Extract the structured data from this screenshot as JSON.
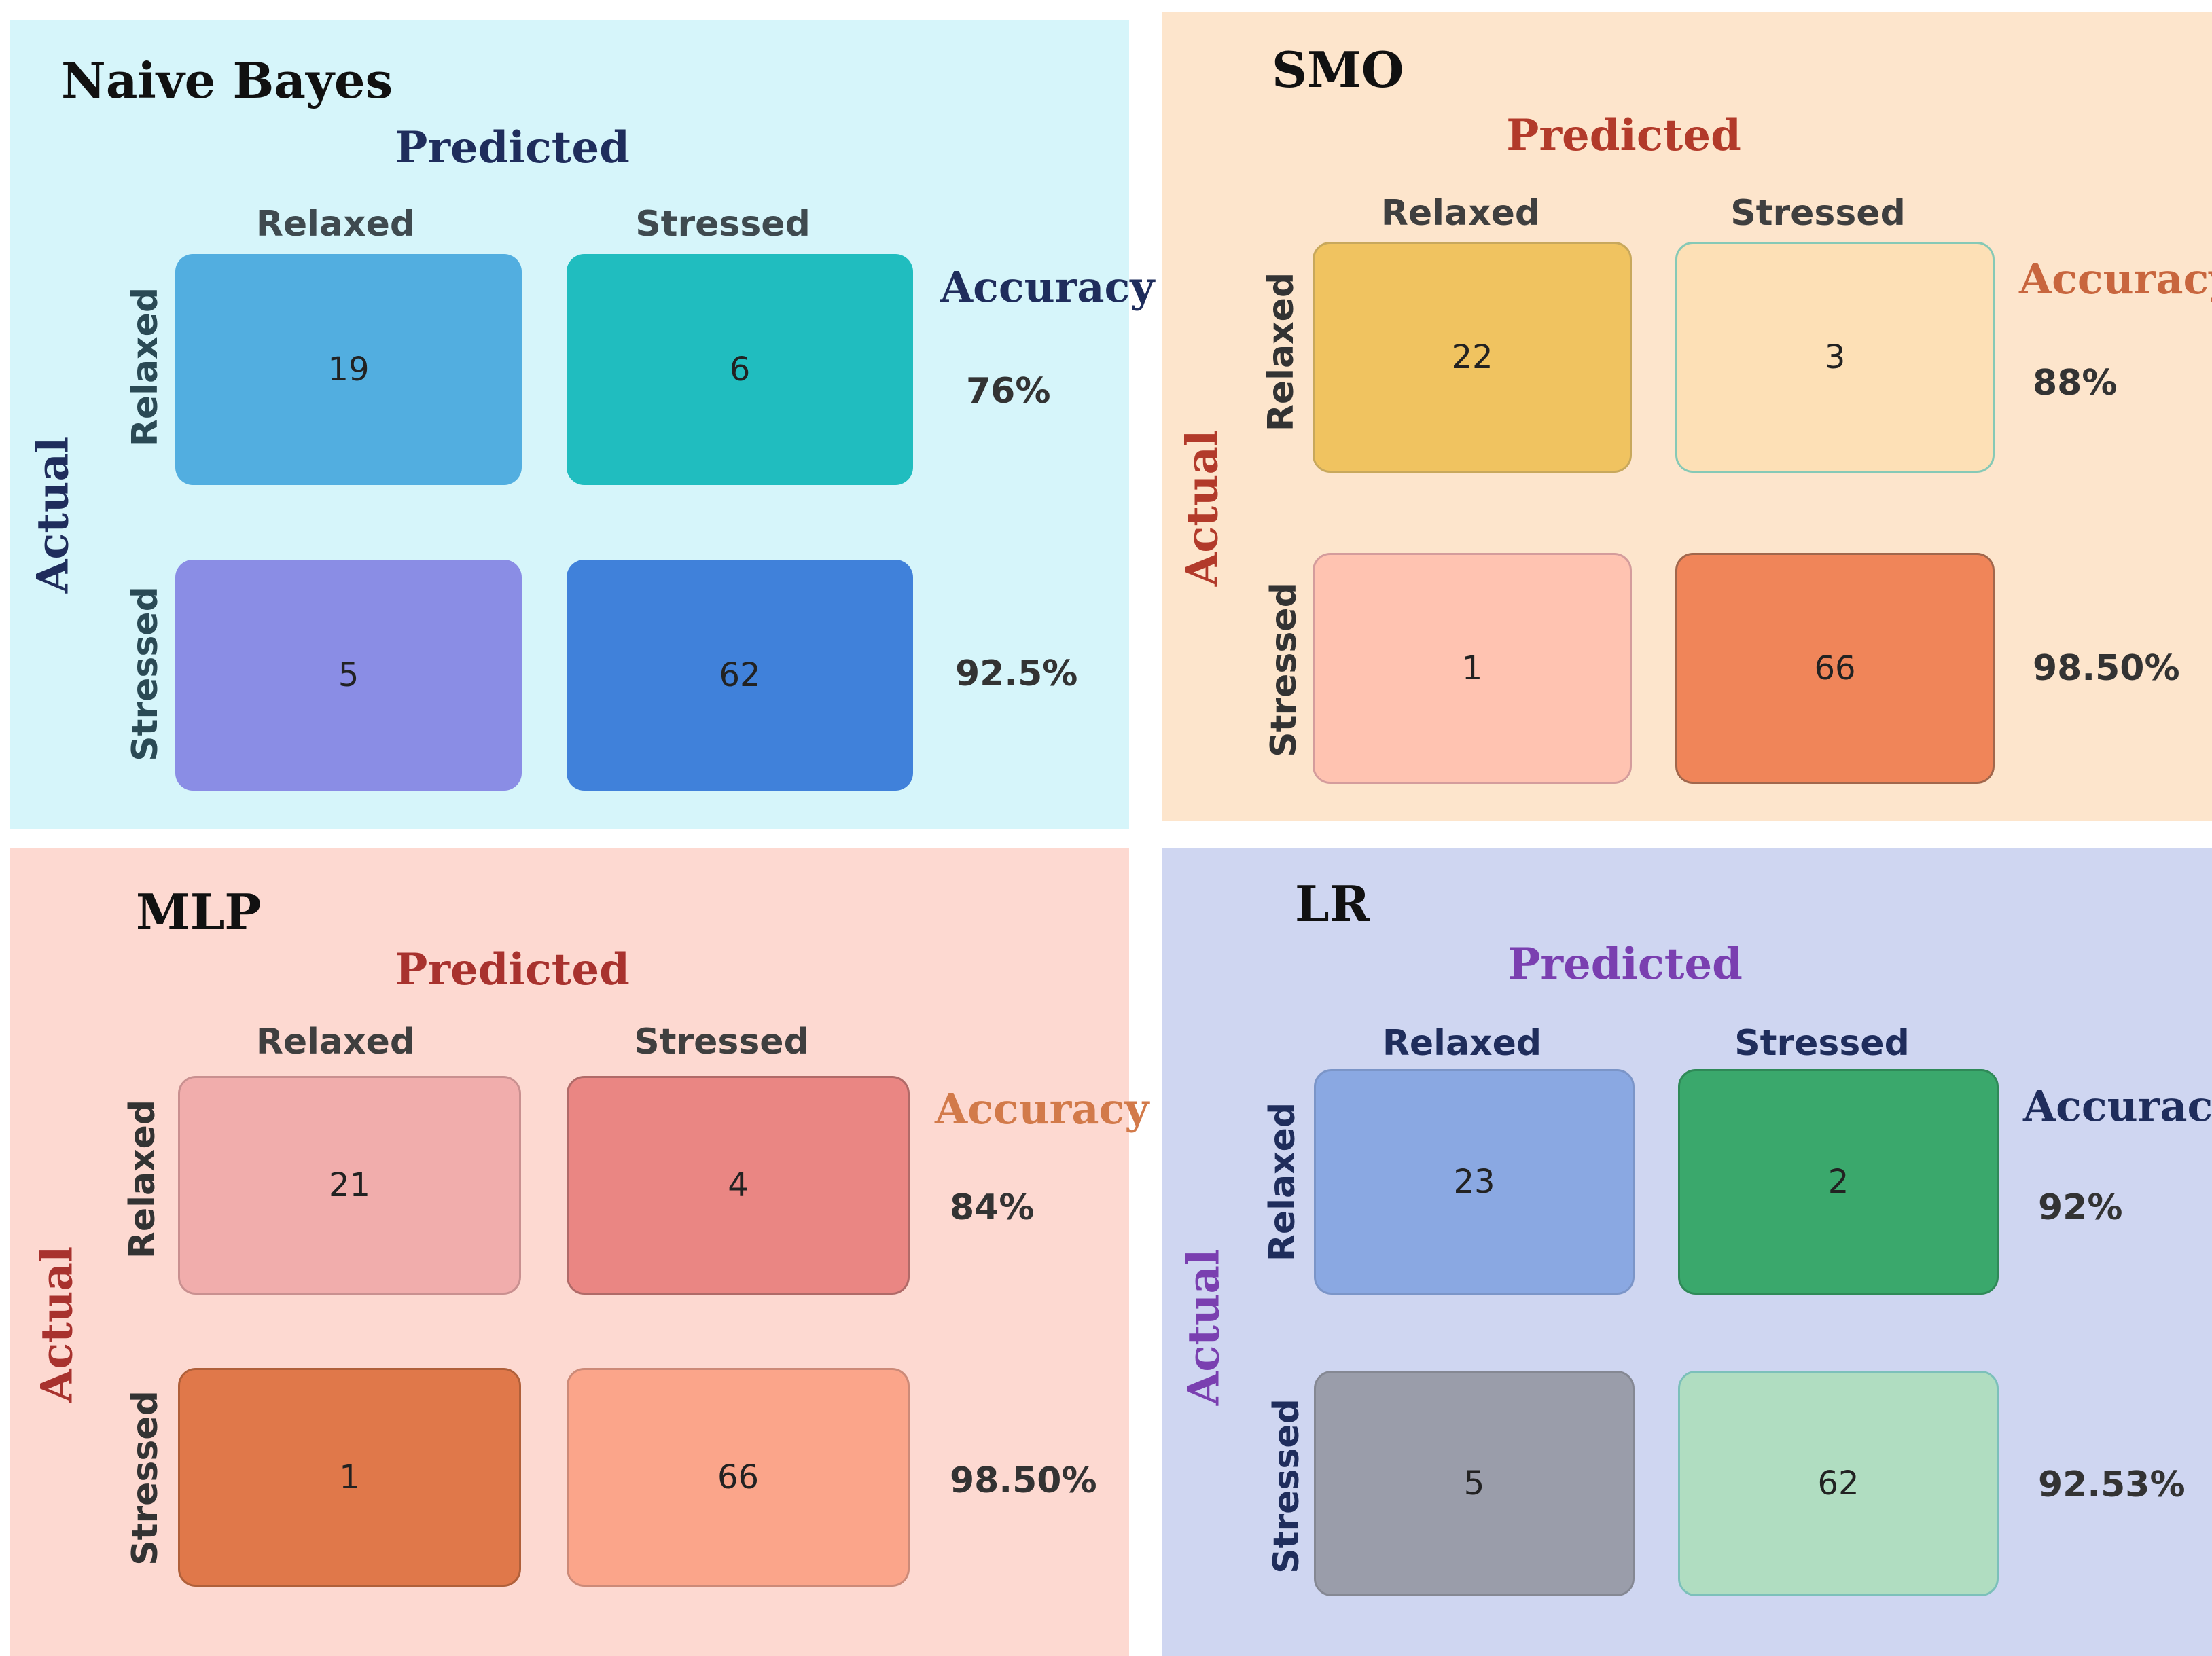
{
  "panels": [
    {
      "id": "nb",
      "title": "Naive Bayes",
      "predicted_label": "Predicted",
      "actual_label": "Actual",
      "col_labels": [
        "Relaxed",
        "Stressed"
      ],
      "row_labels": [
        "Relaxed",
        "Stressed"
      ],
      "matrix": [
        [
          "19",
          "6"
        ],
        [
          "5",
          "62"
        ]
      ],
      "accuracy_label": "Accuracy",
      "accuracies": [
        "76%",
        "92.5%"
      ],
      "colors": {
        "background": "#d6f5fa",
        "header": "#1f2d5c",
        "col_labels": "#3f4a4f",
        "row_labels": "#2a4a55",
        "accuracy_title": "#1f2d5c"
      }
    },
    {
      "id": "smo",
      "title": "SMO",
      "predicted_label": "Predicted",
      "actual_label": "Actual",
      "col_labels": [
        "Relaxed",
        "Stressed"
      ],
      "row_labels": [
        "Relaxed",
        "Stressed"
      ],
      "matrix": [
        [
          "22",
          "3"
        ],
        [
          "1",
          "66"
        ]
      ],
      "accuracy_label": "Accuracy",
      "accuracies": [
        "88%",
        "98.50%"
      ],
      "colors": {
        "background": "#fde5cc",
        "header": "#b23a2a",
        "col_labels": "#3f3f3f",
        "row_labels": "#333333",
        "accuracy_title": "#c8663e"
      }
    },
    {
      "id": "mlp",
      "title": "MLP",
      "predicted_label": "Predicted",
      "actual_label": "Actual",
      "col_labels": [
        "Relaxed",
        "Stressed"
      ],
      "row_labels": [
        "Relaxed",
        "Stressed"
      ],
      "matrix": [
        [
          "21",
          "4"
        ],
        [
          "1",
          "66"
        ]
      ],
      "accuracy_label": "Accuracy",
      "accuracies": [
        "84%",
        "98.50%"
      ],
      "colors": {
        "background": "#fdd9d1",
        "header": "#a8322e",
        "col_labels": "#3f3f3f",
        "row_labels": "#333333",
        "accuracy_title": "#d27a4a"
      }
    },
    {
      "id": "lr",
      "title": "LR",
      "predicted_label": "Predicted",
      "actual_label": "Actual",
      "col_labels": [
        "Relaxed",
        "Stressed"
      ],
      "row_labels": [
        "Relaxed",
        "Stressed"
      ],
      "matrix": [
        [
          "23",
          "2"
        ],
        [
          "5",
          "62"
        ]
      ],
      "accuracy_label": "Accuracy",
      "accuracies": [
        "92%",
        "92.53%"
      ],
      "colors": {
        "background": "#cfd6f1",
        "header": "#7a3fb0",
        "col_labels": "#1f2d5c",
        "row_labels": "#1f2d5c",
        "accuracy_title": "#1f2d5c"
      }
    }
  ]
}
